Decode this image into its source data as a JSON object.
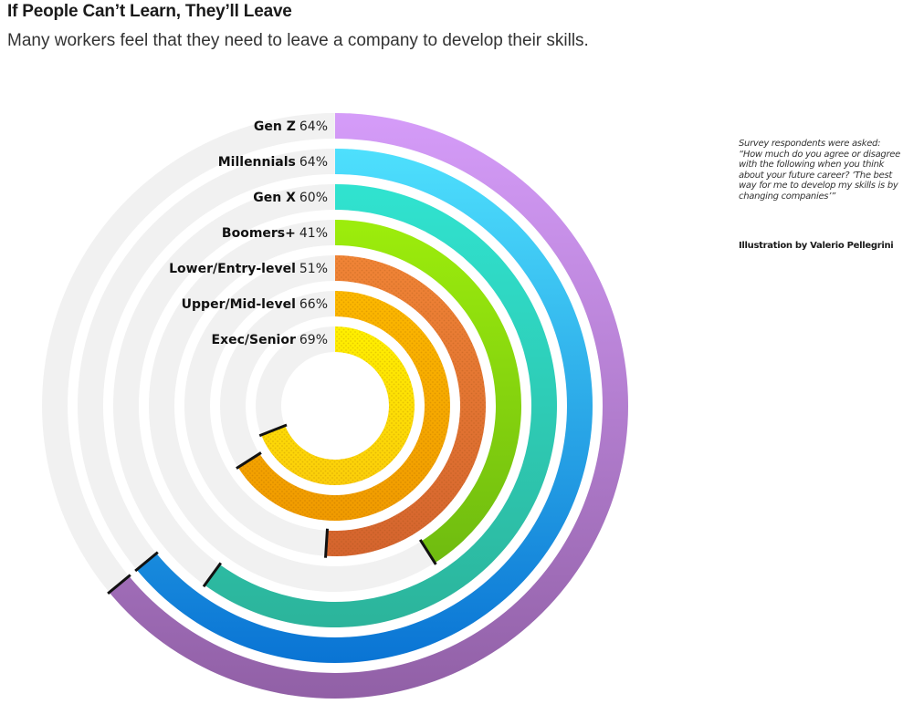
{
  "header": {
    "title": "If People Can’t Learn, They’ll Leave",
    "subtitle": "Many workers feel that they need to leave a company to develop their skills."
  },
  "note": {
    "text": "Survey respondents were asked: “How much do you agree or disagree with the following when you think about your future career? ‘The best way for me to develop my skills is by changing companies’”",
    "credit": "Illustration by Valerio Pellegrini"
  },
  "chart_data": {
    "type": "radial-bar",
    "title": "If People Can’t Learn, They’ll Leave",
    "subtitle": "Many workers feel that they need to leave a company to develop their skills.",
    "unit": "%",
    "max": 100,
    "direction": "clockwise from top",
    "track_color": "#f1f1f1",
    "series": [
      {
        "name": "Gen Z",
        "value": 64,
        "value_label": "64%",
        "colors": [
          "#d59cf9",
          "#9160a6"
        ],
        "textured": false
      },
      {
        "name": "Millennials",
        "value": 64,
        "value_label": "64%",
        "colors": [
          "#4ee0fd",
          "#0a74d4"
        ],
        "textured": false
      },
      {
        "name": "Gen X",
        "value": 60,
        "value_label": "60%",
        "colors": [
          "#30e3d0",
          "#2cb49b"
        ],
        "textured": false
      },
      {
        "name": "Boomers+",
        "value": 41,
        "value_label": "41%",
        "colors": [
          "#9ded0c",
          "#6fbb10"
        ],
        "textured": false
      },
      {
        "name": "Lower/Entry-level",
        "value": 51,
        "value_label": "51%",
        "colors": [
          "#f08436",
          "#d4642e"
        ],
        "textured": true
      },
      {
        "name": "Upper/Mid-level",
        "value": 66,
        "value_label": "66%",
        "colors": [
          "#fcb800",
          "#f09a00"
        ],
        "textured": true
      },
      {
        "name": "Exec/Senior",
        "value": 69,
        "value_label": "69%",
        "colors": [
          "#fff000",
          "#fbcd0a"
        ],
        "textured": true
      }
    ]
  }
}
